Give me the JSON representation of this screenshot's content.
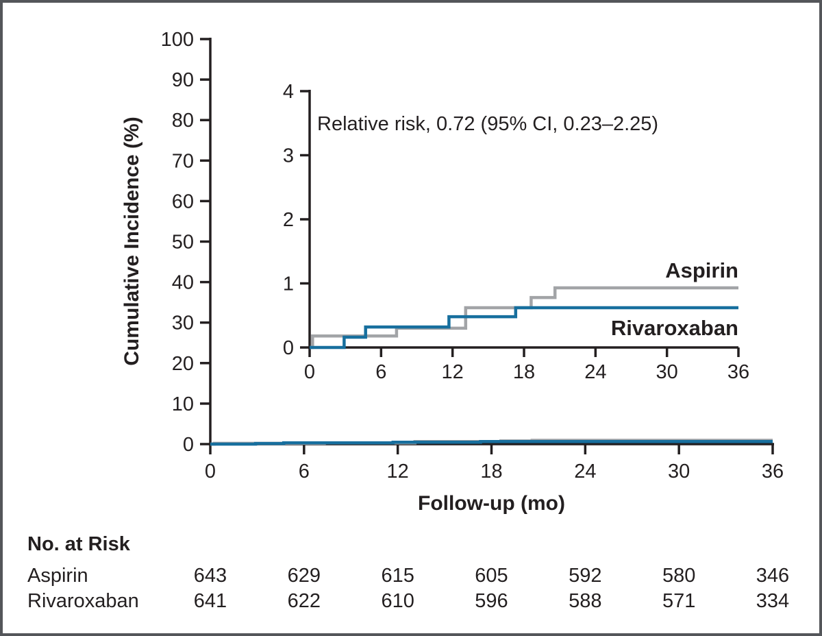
{
  "figure": {
    "border_color": "#54565a",
    "background_color": "#ffffff",
    "text_color": "#231f20"
  },
  "chart_data": {
    "type": "line",
    "subtype": "kaplan-meier-cumulative-incidence-step",
    "title": "",
    "annotation": "Relative risk, 0.72 (95% CI, 0.23–2.25)",
    "main_axes": {
      "xlabel": "Follow-up (mo)",
      "ylabel": "Cumulative Incidence (%)",
      "xlim": [
        0,
        36
      ],
      "ylim": [
        0,
        100
      ],
      "xticks": [
        0,
        6,
        12,
        18,
        24,
        30,
        36
      ],
      "yticks": [
        0,
        10,
        20,
        30,
        40,
        50,
        60,
        70,
        80,
        90,
        100
      ],
      "grid": false
    },
    "inset_axes": {
      "xlim": [
        0,
        36
      ],
      "ylim": [
        0,
        4
      ],
      "xticks": [
        0,
        6,
        12,
        18,
        24,
        30,
        36
      ],
      "yticks": [
        0,
        1,
        2,
        3,
        4
      ],
      "grid": false
    },
    "legend_position": "labels-at-line-ends",
    "series": [
      {
        "name": "Aspirin",
        "color": "#a2a4a7",
        "label_color": "#95979a",
        "steps": [
          [
            0,
            0
          ],
          [
            0.25,
            0.18
          ],
          [
            7.3,
            0.3
          ],
          [
            13.1,
            0.62
          ],
          [
            18.6,
            0.78
          ],
          [
            20.6,
            0.93
          ],
          [
            36,
            0.93
          ]
        ]
      },
      {
        "name": "Rivaroxaban",
        "color": "#176f9e",
        "label_color": "#176f9e",
        "steps": [
          [
            0,
            0
          ],
          [
            2.9,
            0.16
          ],
          [
            4.7,
            0.32
          ],
          [
            11.7,
            0.48
          ],
          [
            17.3,
            0.62
          ],
          [
            36,
            0.62
          ]
        ]
      }
    ]
  },
  "risk_table": {
    "title": "No. at Risk",
    "timepoints": [
      0,
      6,
      12,
      18,
      24,
      30,
      36
    ],
    "rows": [
      {
        "label": "Aspirin",
        "values": [
          "643",
          "629",
          "615",
          "605",
          "592",
          "580",
          "346"
        ]
      },
      {
        "label": "Rivaroxaban",
        "values": [
          "641",
          "622",
          "610",
          "596",
          "588",
          "571",
          "334"
        ]
      }
    ]
  }
}
